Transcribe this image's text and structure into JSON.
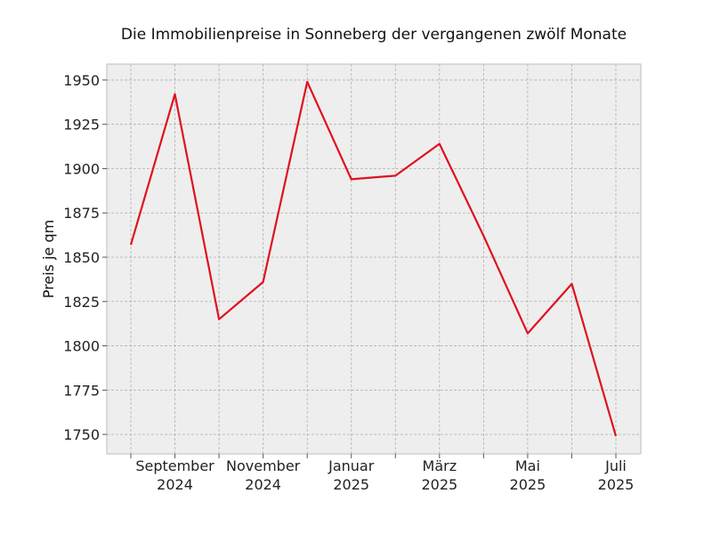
{
  "chart_data": {
    "type": "line",
    "title": "Die Immobilienpreise in Sonneberg der vergangenen zwölf Monate",
    "xlabel": "",
    "ylabel": "Preis je qm",
    "x": [
      "2024-08",
      "2024-09",
      "2024-10",
      "2024-11",
      "2024-12",
      "2025-01",
      "2025-02",
      "2025-03",
      "2025-04",
      "2025-05",
      "2025-06",
      "2025-07"
    ],
    "x_tick_labels": [
      {
        "x": "2024-09",
        "line1": "September",
        "line2": "2024"
      },
      {
        "x": "2024-11",
        "line1": "November",
        "line2": "2024"
      },
      {
        "x": "2025-01",
        "line1": "Januar",
        "line2": "2025"
      },
      {
        "x": "2025-03",
        "line1": "März",
        "line2": "2025"
      },
      {
        "x": "2025-05",
        "line1": "Mai",
        "line2": "2025"
      },
      {
        "x": "2025-07",
        "line1": "Juli",
        "line2": "2025"
      }
    ],
    "series": [
      {
        "values": [
          1857,
          1942,
          1815,
          1836,
          1949,
          1894,
          1896,
          1914,
          1862,
          1807,
          1835,
          1749
        ],
        "color": "#e0111f"
      }
    ],
    "ylim": [
      1739,
      1959
    ],
    "yticks": [
      1750,
      1775,
      1800,
      1825,
      1850,
      1875,
      1900,
      1925,
      1950
    ],
    "grid": true,
    "background": "#eeeeee",
    "legend": "none"
  }
}
